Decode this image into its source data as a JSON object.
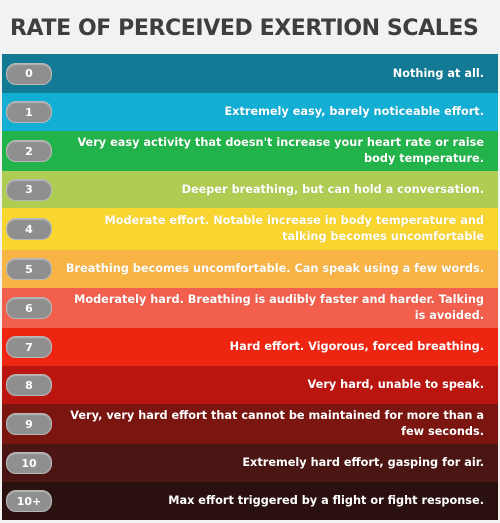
{
  "title": "RATE OF PERCEIVED EXERTION SCALES",
  "rows": [
    {
      "level": "0",
      "text": "Nothing at all.",
      "color": "#127a95"
    },
    {
      "level": "1",
      "text": "Extremely easy, barely noticeable effort.",
      "color": "#13aed3"
    },
    {
      "level": "2",
      "text": "Very easy activity that doesn't increase your heart rate or raise body temperature.",
      "color": "#22b34a"
    },
    {
      "level": "3",
      "text": "Deeper breathing, but can hold a conversation.",
      "color": "#aecd52"
    },
    {
      "level": "4",
      "text": "Moderate effort. Notable increase in body temperature and talking becomes uncomfortable",
      "color": "#f8d52f"
    },
    {
      "level": "5",
      "text": "Breathing becomes uncomfortable. Can speak using a few words.",
      "color": "#f9b446"
    },
    {
      "level": "6",
      "text": "Moderately hard. Breathing is audibly faster and harder. Talking is avoided.",
      "color": "#f25f4d"
    },
    {
      "level": "7",
      "text": "Hard effort. Vigorous, forced breathing.",
      "color": "#ee2611"
    },
    {
      "level": "8",
      "text": "Very hard, unable to speak.",
      "color": "#bb1510"
    },
    {
      "level": "9",
      "text": "Very, very hard effort that cannot be maintained for more than a few seconds.",
      "color": "#7b1510"
    },
    {
      "level": "10",
      "text": "Extremely hard effort, gasping for air.",
      "color": "#4a1513"
    },
    {
      "level": "10+",
      "text": "Max effort triggered by a flight or fight response.",
      "color": "#2a1110"
    }
  ]
}
